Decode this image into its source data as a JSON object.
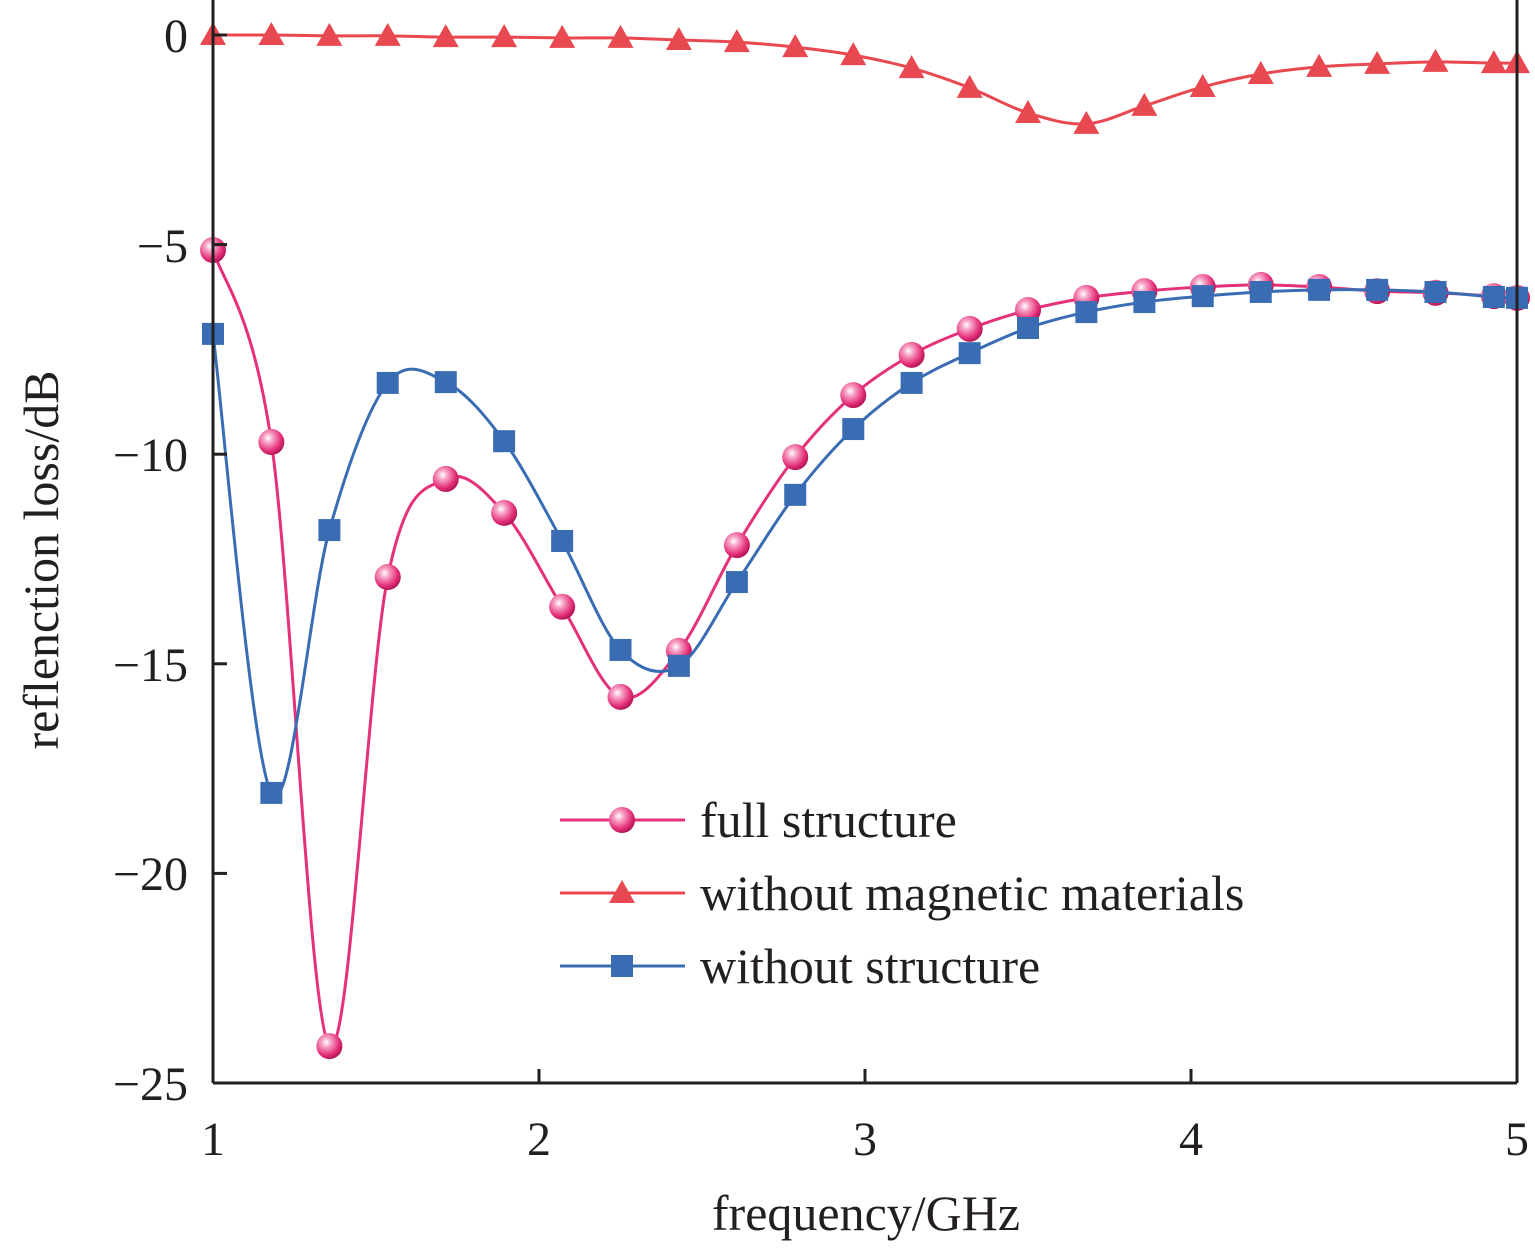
{
  "chart_data": {
    "type": "line",
    "title": "",
    "xlabel": "frequency/GHz",
    "ylabel": "reflenction loss/dB",
    "xlim": [
      1,
      5
    ],
    "ylim": [
      -25,
      0
    ],
    "xticks": [
      "1",
      "2",
      "3",
      "4",
      "5"
    ],
    "yticks": [
      "0",
      "−5",
      "−10",
      "−15",
      "−20",
      "−25"
    ],
    "grid": false,
    "legend_position": "bottom-center",
    "x": [
      1.0,
      1.179,
      1.357,
      1.536,
      1.714,
      1.893,
      2.071,
      2.25,
      2.429,
      2.607,
      2.786,
      2.964,
      3.143,
      3.321,
      3.5,
      3.679,
      3.857,
      4.036,
      4.214,
      4.393,
      4.571,
      4.75,
      4.929,
      5.0
    ],
    "series": [
      {
        "name": "full structure",
        "marker": "circle",
        "color": "#e5317a",
        "values": [
          -5.13,
          -9.71,
          -24.12,
          -12.93,
          -10.59,
          -11.4,
          -13.64,
          -15.79,
          -14.69,
          -12.17,
          -10.07,
          -8.59,
          -7.63,
          -7.01,
          -6.56,
          -6.27,
          -6.11,
          -6.01,
          -5.96,
          -6.01,
          -6.11,
          -6.15,
          -6.23,
          -6.27
        ]
      },
      {
        "name": "without magnetic materials",
        "marker": "triangle",
        "color": "#e8484f",
        "values": [
          0,
          0,
          -0.02,
          -0.02,
          -0.05,
          -0.05,
          -0.07,
          -0.07,
          -0.12,
          -0.17,
          -0.29,
          -0.48,
          -0.79,
          -1.26,
          -1.86,
          -2.12,
          -1.69,
          -1.24,
          -0.93,
          -0.76,
          -0.69,
          -0.64,
          -0.67,
          -0.67
        ]
      },
      {
        "name": "without structure",
        "marker": "square",
        "color": "#3a6cb4",
        "values": [
          -7.13,
          -18.08,
          -11.81,
          -8.3,
          -8.28,
          -9.69,
          -12.07,
          -14.67,
          -15.05,
          -13.05,
          -10.97,
          -9.4,
          -8.3,
          -7.59,
          -6.99,
          -6.61,
          -6.37,
          -6.23,
          -6.13,
          -6.08,
          -6.08,
          -6.13,
          -6.25,
          -6.27
        ]
      }
    ]
  }
}
